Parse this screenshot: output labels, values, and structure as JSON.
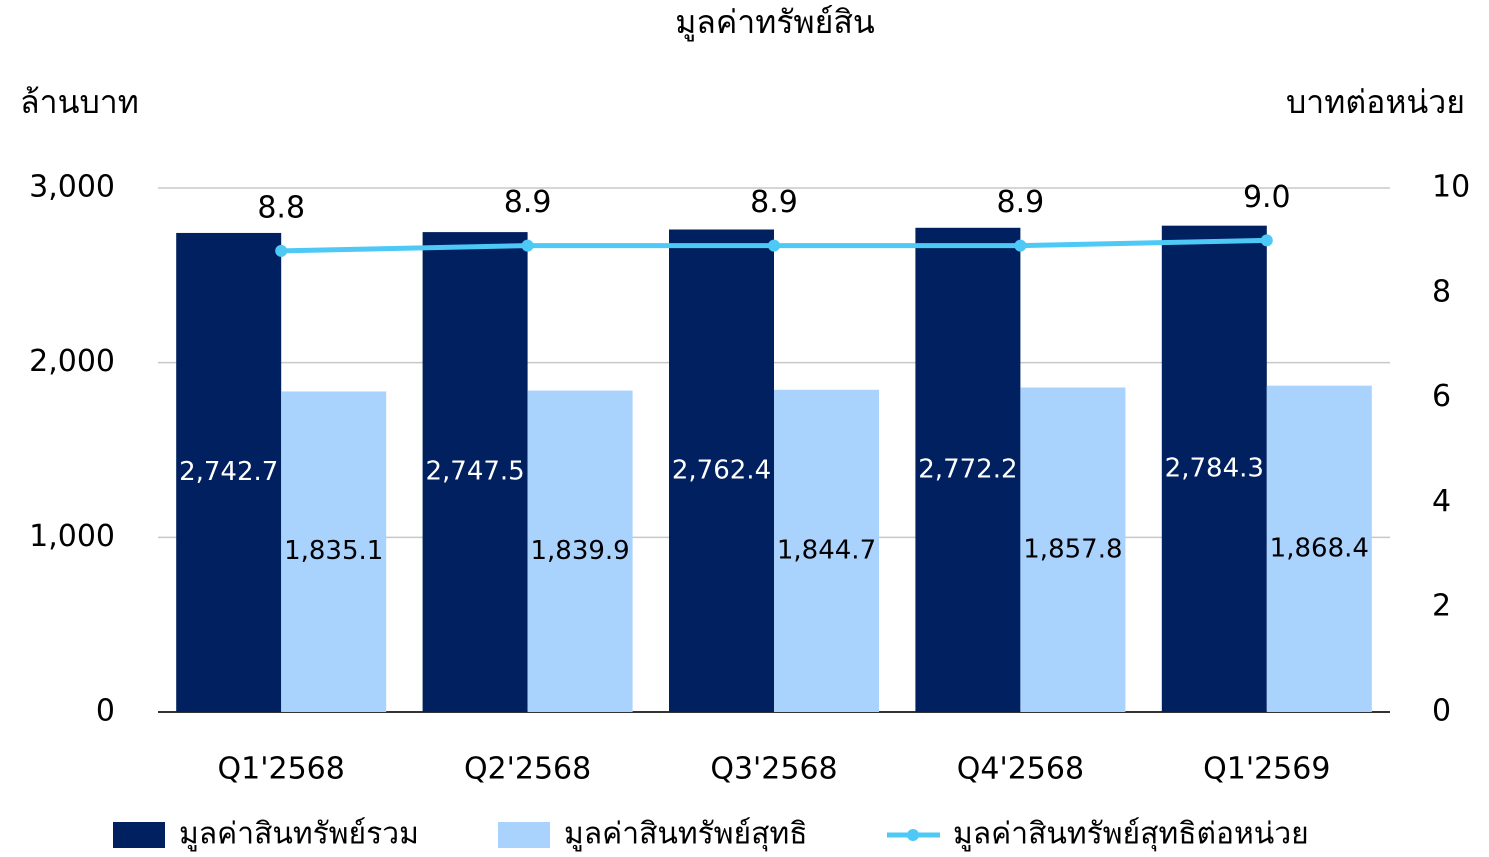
{
  "chart_data": {
    "type": "bar_line",
    "title": "มูลค่าทรัพย์สิน",
    "y_label": "ล้านบาท",
    "y2_label": "บาทต่อหน่วย",
    "categories": [
      "Q1'2568",
      "Q2'2568",
      "Q3'2568",
      "Q4'2568",
      "Q1'2569"
    ],
    "series": [
      {
        "name": "มูลค่าสินทรัพย์รวม",
        "type": "bar",
        "color": "#00205f",
        "values": [
          2742.7,
          2747.5,
          2762.4,
          2772.2,
          2784.3
        ],
        "value_labels": [
          "2,742.7",
          "2,747.5",
          "2,762.4",
          "2,772.2",
          "2,784.3"
        ],
        "label_color": "#ffffff"
      },
      {
        "name": "มูลค่าสินทรัพย์สุทธิ",
        "type": "bar",
        "color": "#a9d2fd",
        "values": [
          1835.1,
          1839.9,
          1844.7,
          1857.8,
          1868.4
        ],
        "value_labels": [
          "1,835.1",
          "1,839.9",
          "1,844.7",
          "1,857.8",
          "1,868.4"
        ],
        "label_color": "#000000"
      },
      {
        "name": "มูลค่าสินทรัพย์สุทธิต่อหน่วย",
        "type": "line",
        "axis": "y2",
        "color": "#4ec9f6",
        "values": [
          8.8,
          8.9,
          8.9,
          8.9,
          9.0
        ],
        "value_labels": [
          "8.8",
          "8.9",
          "8.9",
          "8.9",
          "9.0"
        ],
        "label_color": "#000000"
      }
    ],
    "ylim": [
      0,
      3000
    ],
    "yticks": [
      0,
      {
        "value": 1000,
        "label": "1,000"
      },
      {
        "value": 2000,
        "label": "2,000"
      },
      {
        "value": 3000,
        "label": "3,000"
      }
    ],
    "y2lim": [
      0,
      10
    ],
    "y2ticks": [
      0,
      2,
      4,
      6,
      8,
      10
    ],
    "grid": true,
    "legend": "bottom"
  }
}
